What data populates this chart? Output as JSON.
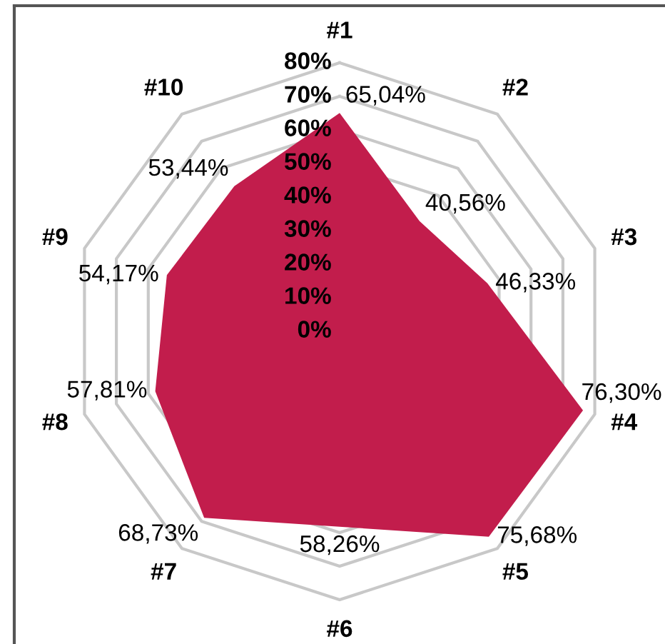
{
  "chart_data": {
    "type": "radar",
    "categories": [
      "#1",
      "#2",
      "#3",
      "#4",
      "#5",
      "#6",
      "#7",
      "#8",
      "#9",
      "#10"
    ],
    "series": [
      {
        "color": "#c21d4c",
        "values": [
          65.04,
          40.56,
          46.33,
          76.3,
          75.68,
          58.26,
          68.73,
          57.81,
          54.17,
          53.44
        ],
        "value_labels": [
          "65,04%",
          "40,56%",
          "46,33%",
          "76,30%",
          "75,68%",
          "58,26%",
          "68,73%",
          "57,81%",
          "54,17%",
          "53,44%"
        ]
      }
    ],
    "ylim": [
      0,
      80
    ],
    "yticks": [
      {
        "value": 0,
        "label": "0%"
      },
      {
        "value": 10,
        "label": "10%"
      },
      {
        "value": 20,
        "label": "20%"
      },
      {
        "value": 30,
        "label": "30%"
      },
      {
        "value": 40,
        "label": "40%"
      },
      {
        "value": 50,
        "label": "50%"
      },
      {
        "value": 60,
        "label": "60%"
      },
      {
        "value": 70,
        "label": "70%"
      },
      {
        "value": 80,
        "label": "80%"
      }
    ],
    "grid": true
  }
}
